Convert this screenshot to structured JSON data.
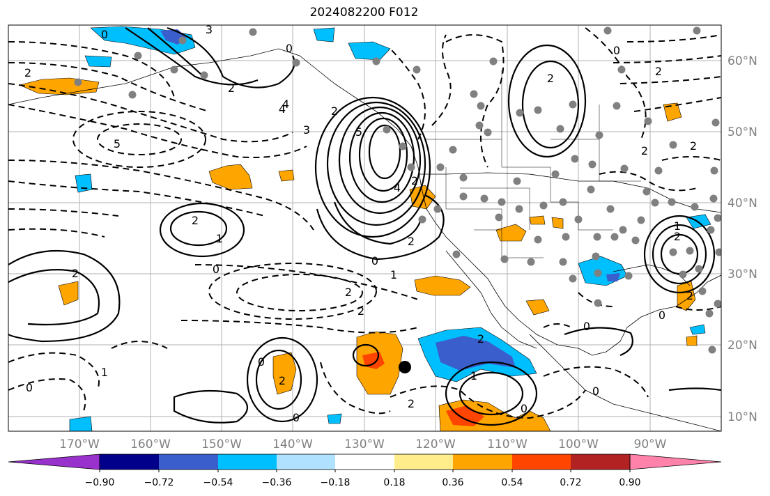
{
  "title": "2024082200 F012",
  "latitude_labels": [
    "60°N",
    "50°N",
    "40°N",
    "30°N",
    "20°N",
    "10°N"
  ],
  "longitude_labels": [
    "170°W",
    "160°W",
    "150°W",
    "140°W",
    "130°W",
    "120°W",
    "110°W",
    "100°W",
    "90°W"
  ],
  "colorbar": {
    "tick_labels": [
      "−0.90",
      "−0.72",
      "−0.54",
      "−0.36",
      "−0.18",
      "0.18",
      "0.36",
      "0.54",
      "0.72",
      "0.90"
    ],
    "colors": [
      "#9932cc",
      "#00008b",
      "#3a5fcd",
      "#00bfff",
      "#b0e2ff",
      "#ffffff",
      "#ffec8b",
      "#ffa500",
      "#ff4500",
      "#b22222",
      "#ff82ab"
    ]
  },
  "contour_labels": [
    "3",
    "0",
    "2",
    "2",
    "4",
    "5",
    "4",
    "3",
    "2",
    "5",
    "2",
    "4",
    "2",
    "0",
    "2",
    "0",
    "1",
    "2",
    "0",
    "2",
    "1",
    "2",
    "2",
    "0",
    "1",
    "0",
    "2",
    "2",
    "0",
    "1",
    "2",
    "0",
    "0",
    "0",
    "2",
    "1",
    "2",
    "0",
    "2",
    "0",
    "2",
    "2"
  ],
  "colors": {
    "orange": "#ffa500",
    "red": "#ff4500",
    "light_blue": "#00bfff",
    "blue": "#3a5fcd",
    "dark_blue": "#00008b",
    "gray_dot": "#808080",
    "grid": "#b0b0b0"
  }
}
